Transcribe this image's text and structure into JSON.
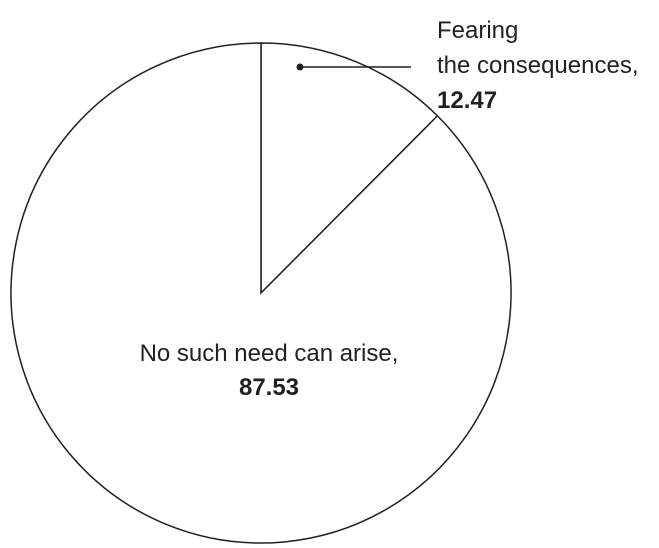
{
  "chart_data": {
    "type": "pie",
    "slices": [
      {
        "label": "Fearing the consequences,",
        "label_lines": [
          "Fearing",
          "the consequences,"
        ],
        "value": 12.47,
        "value_text": "12.47"
      },
      {
        "label": "No such need can arise,",
        "label_lines": [
          "No such need can arise,"
        ],
        "value": 87.53,
        "value_text": "87.53"
      }
    ],
    "colors": {
      "fill": "#ffffff",
      "stroke": "#231f20"
    },
    "start_angle": "12 o'clock, clockwise"
  }
}
